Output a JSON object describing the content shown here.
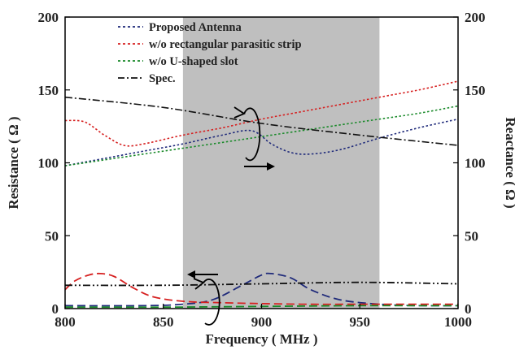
{
  "chart_data": {
    "type": "line",
    "xlabel": "Frequency ( MHz )",
    "ylabel_left": "Resistance ( Ω )",
    "ylabel_right": "Reactance ( Ω )",
    "xlim": [
      800,
      1000
    ],
    "ylim_left": [
      0,
      200
    ],
    "ylim_right": [
      0,
      200
    ],
    "x_ticks": [
      "800",
      "850",
      "900",
      "950",
      "1000"
    ],
    "y_ticks_left": [
      "0",
      "50",
      "100",
      "150",
      "200"
    ],
    "y_ticks_right": [
      "0",
      "50",
      "100",
      "150",
      "200"
    ],
    "grid": false,
    "legend_position": "top-left",
    "shaded_band": {
      "x_start": 860,
      "x_end": 960,
      "color": "#bfbfbf"
    },
    "colors": {
      "proposed": "#1f2a7a",
      "no_strip": "#d62020",
      "no_slot": "#1a8a2a",
      "spec": "#111111"
    },
    "legend": [
      {
        "label": "Proposed Antenna",
        "color": "#1f2a7a"
      },
      {
        "label": "w/o rectangular parasitic strip",
        "color": "#d62020"
      },
      {
        "label": "w/o U-shaped slot",
        "color": "#1a8a2a"
      },
      {
        "label": "Spec.",
        "color": "#111111"
      }
    ],
    "series": [
      {
        "name": "Proposed Antenna",
        "quantity": "reactance",
        "color": "#1f2a7a",
        "x": [
          800,
          820,
          840,
          860,
          880,
          895,
          905,
          915,
          925,
          940,
          960,
          980,
          1000
        ],
        "y": [
          98,
          103,
          108,
          113,
          119,
          122,
          113,
          107,
          106,
          109,
          117,
          124,
          130
        ]
      },
      {
        "name": "w/o rectangular parasitic strip",
        "quantity": "reactance",
        "color": "#d62020",
        "x": [
          800,
          810,
          820,
          830,
          840,
          860,
          880,
          900,
          920,
          940,
          960,
          980,
          1000
        ],
        "y": [
          129,
          128,
          119,
          112,
          113,
          119,
          124,
          130,
          135,
          140,
          145,
          150,
          156
        ]
      },
      {
        "name": "w/o U-shaped slot",
        "quantity": "reactance",
        "color": "#1a8a2a",
        "x": [
          800,
          820,
          840,
          860,
          880,
          900,
          920,
          940,
          960,
          980,
          1000
        ],
        "y": [
          98,
          102,
          106,
          110,
          114,
          118,
          122,
          126,
          130,
          134,
          139
        ]
      },
      {
        "name": "Spec.",
        "quantity": "reactance",
        "color": "#111111",
        "x": [
          800,
          850,
          900,
          950,
          1000
        ],
        "y": [
          145,
          138,
          127,
          119,
          112
        ]
      },
      {
        "name": "Proposed Antenna",
        "quantity": "resistance",
        "color": "#1f2a7a",
        "x": [
          800,
          840,
          860,
          875,
          890,
          900,
          905,
          915,
          925,
          940,
          960,
          980,
          1000
        ],
        "y": [
          2,
          2,
          3,
          6,
          16,
          23,
          24,
          21,
          13,
          6,
          3,
          2,
          2
        ]
      },
      {
        "name": "w/o rectangular parasitic strip",
        "quantity": "resistance",
        "color": "#d62020",
        "x": [
          800,
          805,
          812,
          818,
          825,
          835,
          845,
          860,
          880,
          920,
          960,
          1000
        ],
        "y": [
          13,
          19,
          23,
          24,
          22,
          14,
          8,
          5,
          4,
          3,
          3,
          3
        ]
      },
      {
        "name": "w/o U-shaped slot",
        "quantity": "resistance",
        "color": "#1a8a2a",
        "x": [
          800,
          850,
          900,
          950,
          1000
        ],
        "y": [
          1,
          1,
          1.5,
          2,
          2
        ]
      },
      {
        "name": "Spec.",
        "quantity": "resistance",
        "color": "#111111",
        "x": [
          800,
          850,
          900,
          950,
          1000
        ],
        "y": [
          16,
          16,
          17,
          18,
          17
        ]
      }
    ]
  }
}
